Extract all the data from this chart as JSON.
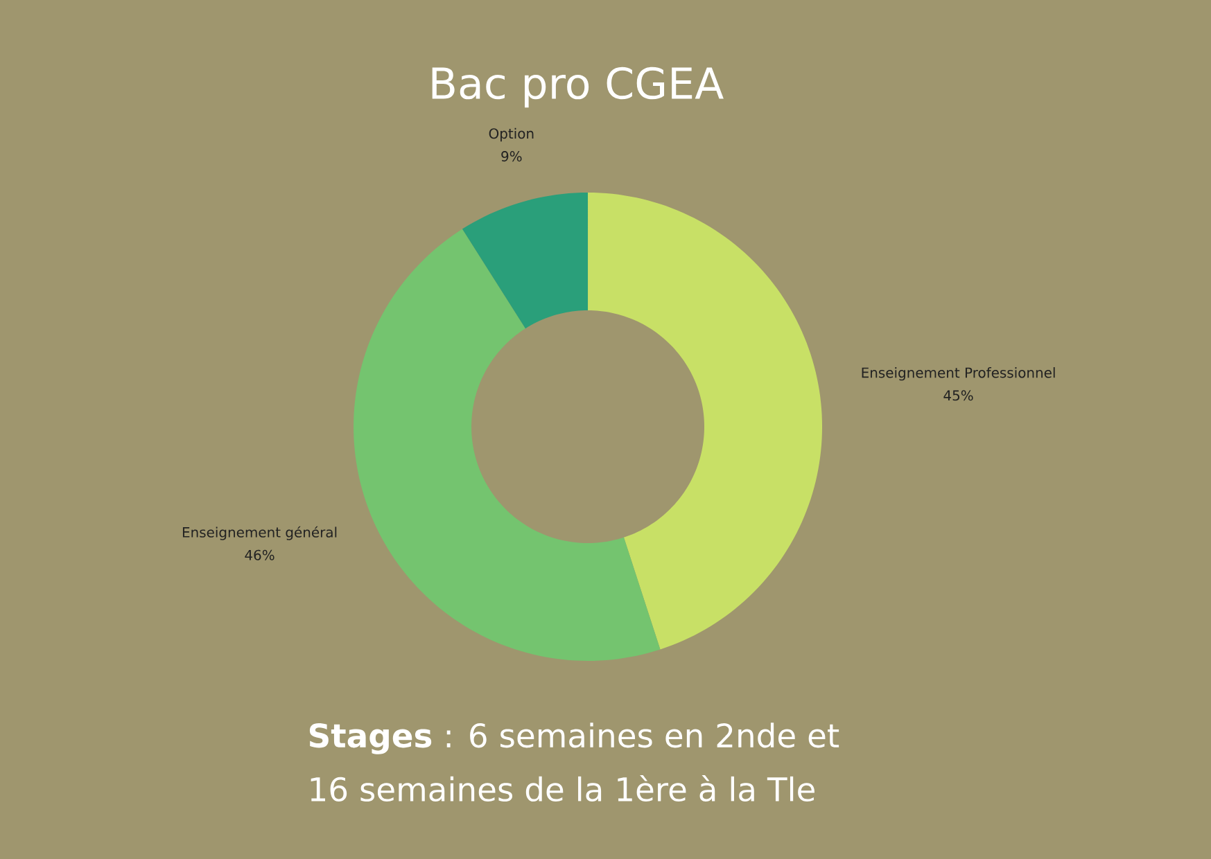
{
  "chart_data": {
    "type": "donut",
    "title": "Bac pro CGEA",
    "categories": [
      "Enseignement Professionnel",
      "Enseignement général",
      "Option"
    ],
    "values": [
      45,
      46,
      9
    ],
    "colors": [
      "#c8e066",
      "#74c46f",
      "#2a9f7a"
    ],
    "value_labels": [
      "45%",
      "46%",
      "9%"
    ],
    "annotations": [
      "**Stages** : 6 semaines en 2nde et",
      "16 semaines de la 1ère à la Tle"
    ]
  }
}
